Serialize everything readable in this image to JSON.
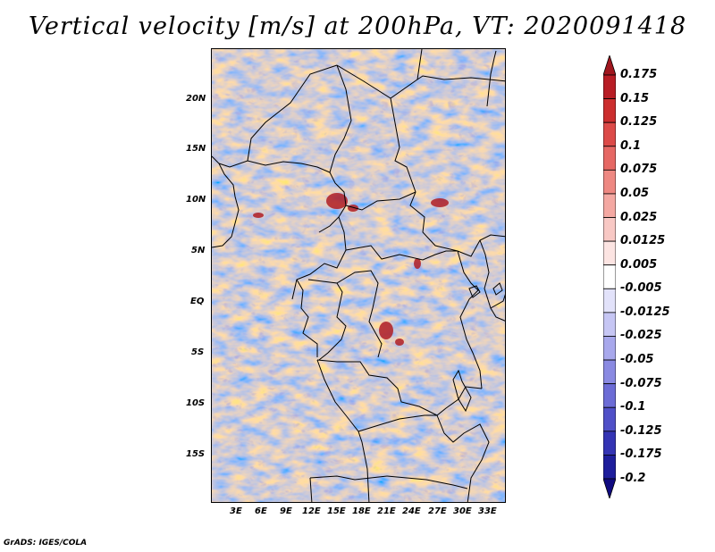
{
  "title": "Vertical velocity [m/s] at 200hPa, VT: 2020091418",
  "map": {
    "lat_labels": [
      "20N",
      "15N",
      "10N",
      "5N",
      "EQ",
      "5S",
      "10S",
      "15S"
    ],
    "lon_labels": [
      "3E",
      "6E",
      "9E",
      "12E",
      "15E",
      "18E",
      "21E",
      "24E",
      "27E",
      "30E",
      "33E"
    ]
  },
  "colorbar": {
    "labels": [
      "0.175",
      "0.15",
      "0.125",
      "0.1",
      "0.075",
      "0.05",
      "0.025",
      "0.0125",
      "0.005",
      "-0.005",
      "-0.0125",
      "-0.025",
      "-0.05",
      "-0.075",
      "-0.1",
      "-0.125",
      "-0.175",
      "-0.2"
    ],
    "colors": [
      "#a0161e",
      "#b81d25",
      "#cc2e2e",
      "#dc4a48",
      "#e66864",
      "#ee8882",
      "#f4a8a2",
      "#f8c8c4",
      "#fce4e2",
      "#ffffff",
      "#e2e2fa",
      "#c6c6f4",
      "#a8a8ec",
      "#8a8ae2",
      "#6c6cd6",
      "#5050c8",
      "#3434b4",
      "#1e1e9c",
      "#100a80"
    ]
  },
  "credit": "GrADS: IGES/COLA"
}
